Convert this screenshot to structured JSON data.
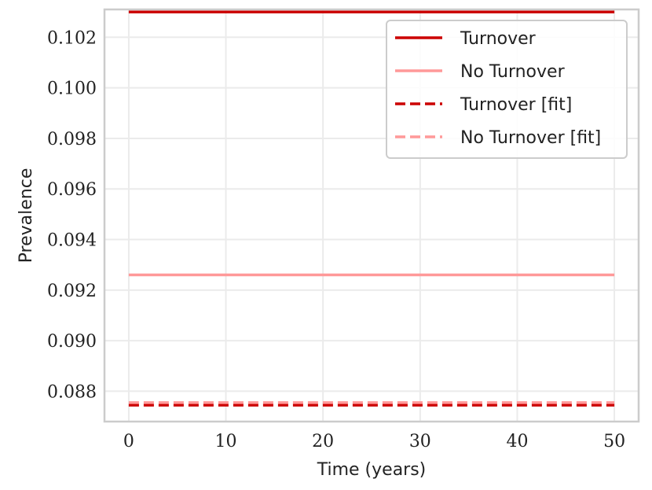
{
  "chart_data": {
    "type": "line",
    "title": "",
    "xlabel": "Time (years)",
    "ylabel": "Prevalence",
    "xlim": [
      -2.5,
      52.5
    ],
    "ylim": [
      0.0868,
      0.1031
    ],
    "xticks": [
      0,
      10,
      20,
      30,
      40,
      50
    ],
    "xtick_labels": [
      "0",
      "10",
      "20",
      "30",
      "40",
      "50"
    ],
    "yticks": [
      0.088,
      0.09,
      0.092,
      0.094,
      0.096,
      0.098,
      0.1,
      0.102
    ],
    "ytick_labels": [
      "0.088",
      "0.090",
      "0.092",
      "0.094",
      "0.096",
      "0.098",
      "0.100",
      "0.102"
    ],
    "grid": true,
    "legend_position": "top-right",
    "series": [
      {
        "name": "Turnover",
        "x": [
          0,
          50
        ],
        "y": [
          0.103,
          0.103
        ],
        "color": "#cc0000",
        "style": "solid"
      },
      {
        "name": "No Turnover",
        "x": [
          0,
          50
        ],
        "y": [
          0.0926,
          0.0926
        ],
        "color": "#ff9999",
        "style": "solid"
      },
      {
        "name": "Turnover [fit]",
        "x": [
          0,
          50
        ],
        "y": [
          0.08745,
          0.08745
        ],
        "color": "#cc0000",
        "style": "dashed"
      },
      {
        "name": "No Turnover [fit]",
        "x": [
          0,
          50
        ],
        "y": [
          0.08755,
          0.08755
        ],
        "color": "#ff9999",
        "style": "dashed"
      }
    ]
  }
}
